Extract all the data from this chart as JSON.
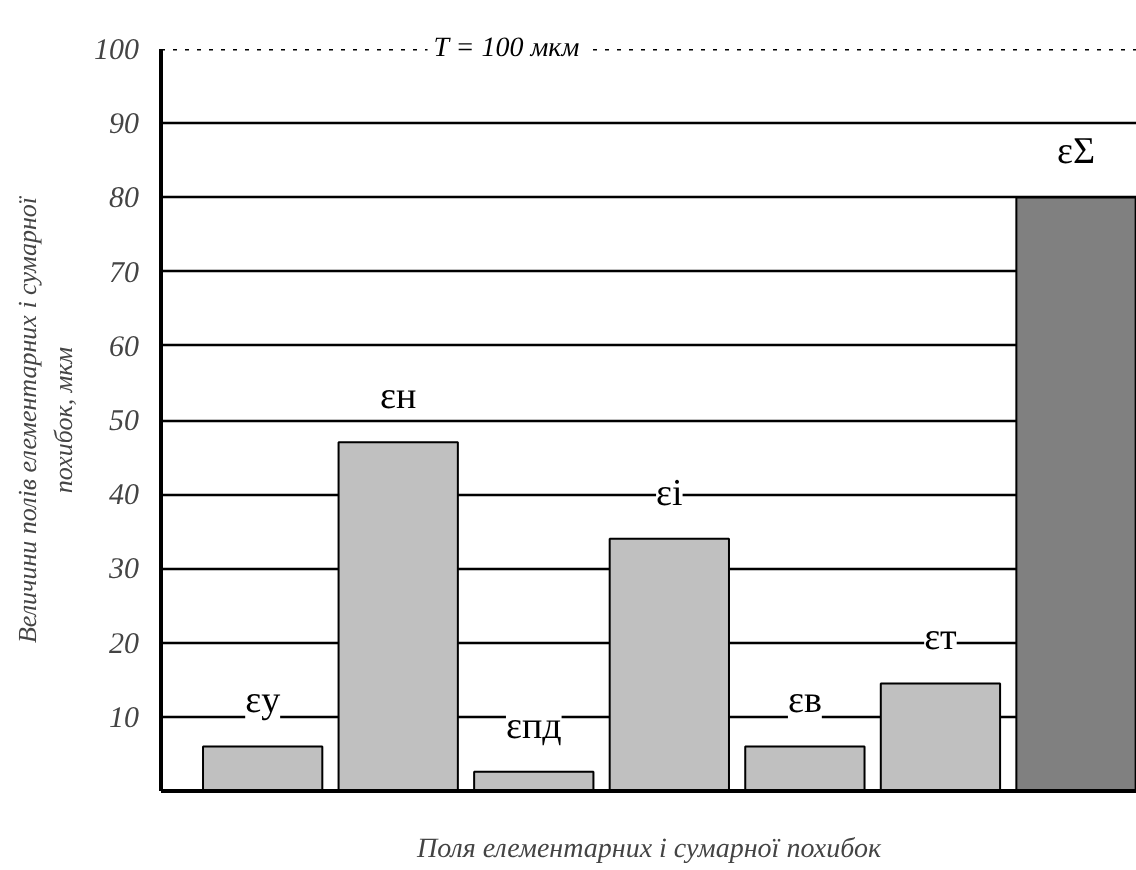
{
  "chart_data": {
    "type": "bar",
    "xlabel": "Поля елементарних і сумарної похибок",
    "ylabel": "Величини полів елементарних і сумарної\nпохибок, мкм",
    "categories": [
      "εу",
      "εн",
      "εпд",
      "εі",
      "εв",
      "εт",
      "εΣ"
    ],
    "values": [
      6,
      47,
      2.6,
      34,
      6,
      14.5,
      80
    ],
    "colors": [
      "#c0c0c0",
      "#c0c0c0",
      "#c0c0c0",
      "#c0c0c0",
      "#c0c0c0",
      "#c0c0c0",
      "#808080"
    ],
    "ylim": [
      0,
      100
    ],
    "yticks": [
      10,
      20,
      30,
      40,
      50,
      60,
      70,
      80,
      90,
      100
    ],
    "grid": "y",
    "ref_lines": [
      {
        "axis": "y",
        "value": 100,
        "label": "T = 100 мкм",
        "line_style": "dotted",
        "color": "#000000"
      }
    ]
  }
}
